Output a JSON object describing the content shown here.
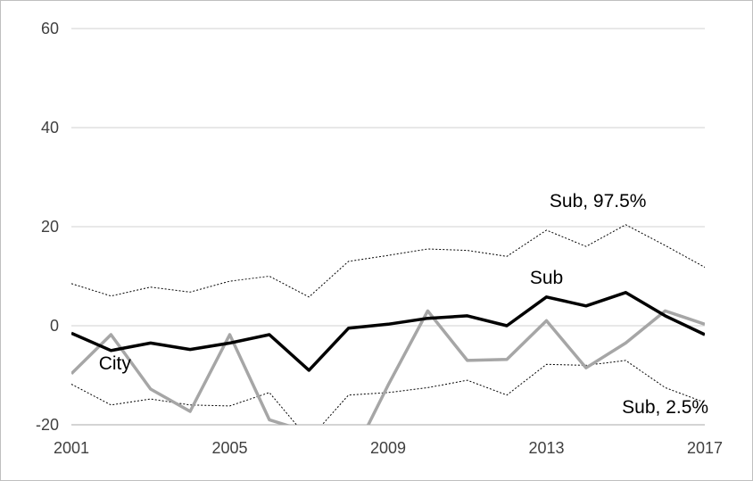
{
  "chart_data": {
    "type": "line",
    "x": [
      2001,
      2002,
      2003,
      2004,
      2005,
      2006,
      2007,
      2008,
      2009,
      2010,
      2011,
      2012,
      2013,
      2014,
      2015,
      2016,
      2017
    ],
    "xticks": [
      2001,
      2005,
      2009,
      2013,
      2017
    ],
    "yticks": [
      -20,
      0,
      20,
      40,
      60
    ],
    "ylim": [
      -20,
      60
    ],
    "xlim": [
      2001,
      2017
    ],
    "grid": "horizontal",
    "series": [
      {
        "name": "Sub",
        "color": "#000000",
        "style": "solid-thick",
        "values": [
          -1.5,
          -5,
          -3.5,
          -4.8,
          -3.5,
          -1.8,
          -9,
          -0.5,
          0.3,
          1.5,
          2,
          0,
          5.8,
          4,
          6.7,
          2,
          -1.8
        ]
      },
      {
        "name": "City",
        "color": "#a6a6a6",
        "style": "solid-thick",
        "values": [
          -9.7,
          -1.8,
          -12.8,
          -17.3,
          -1.8,
          -19,
          -21.5,
          -28,
          -12,
          3,
          -7,
          -6.8,
          1,
          -8.5,
          -3.5,
          3,
          0.3
        ]
      },
      {
        "name": "Sub, 97.5%",
        "color": "#000000",
        "style": "dotted",
        "values": [
          8.5,
          6,
          7.8,
          6.8,
          9,
          10,
          5.8,
          13,
          14.2,
          15.5,
          15.2,
          14,
          19.3,
          16,
          20.4,
          16.2,
          11.8
        ]
      },
      {
        "name": "Sub, 2.5%",
        "color": "#000000",
        "style": "dotted",
        "values": [
          -11.8,
          -16,
          -14.8,
          -16,
          -16.2,
          -13.5,
          -23,
          -14,
          -13.5,
          -12.5,
          -11,
          -14,
          -7.8,
          -8,
          -7,
          -12.5,
          -15.5
        ]
      }
    ],
    "annotations": [
      {
        "text": "Sub, 97.5%",
        "x": 2014.3,
        "y": 24
      },
      {
        "text": "Sub",
        "x": 2013.0,
        "y": 8.5
      },
      {
        "text": "City",
        "x": 2002.1,
        "y": -8.8
      },
      {
        "text": "Sub, 2.5%",
        "x": 2016.0,
        "y": -17.7
      }
    ]
  }
}
